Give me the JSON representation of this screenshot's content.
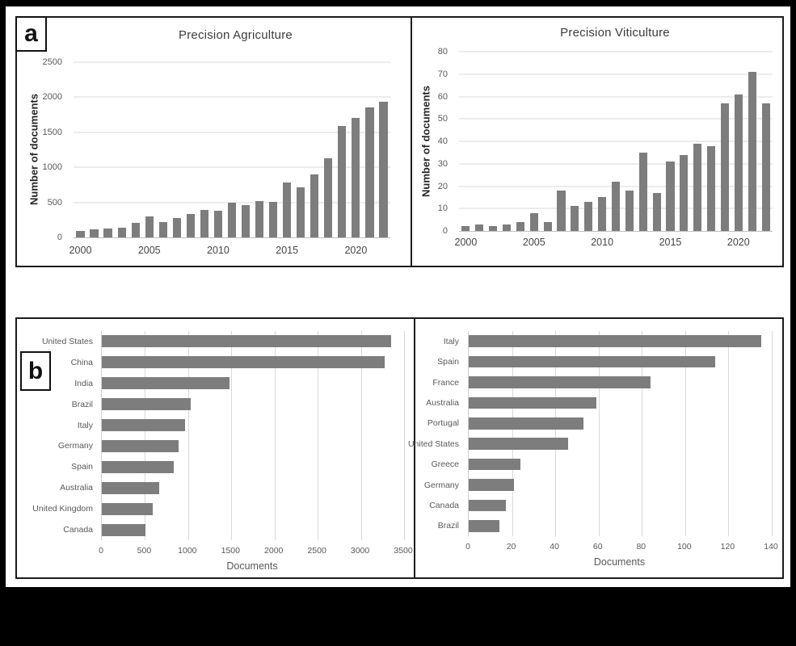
{
  "figure": {
    "panel_a_label": "a",
    "panel_b_label": "b"
  },
  "colors": {
    "canvas_bg": "#000000",
    "page_bg": "#ffffff",
    "panel_border": "#1c1c1c",
    "bar": "#7d7d7d",
    "gridline": "#d9d9d9",
    "axis_text": "#595959",
    "title_text": "#3d3d3d"
  },
  "chart_data": [
    {
      "id": "precision-agriculture-by-year",
      "type": "bar",
      "orientation": "vertical",
      "title": "Precision Agriculture",
      "ylabel": "Number of documents",
      "x": [
        2000,
        2001,
        2002,
        2003,
        2004,
        2005,
        2006,
        2007,
        2008,
        2009,
        2010,
        2011,
        2012,
        2013,
        2014,
        2015,
        2016,
        2017,
        2018,
        2019,
        2020,
        2021,
        2022
      ],
      "values": [
        95,
        110,
        125,
        135,
        205,
        305,
        220,
        275,
        340,
        390,
        380,
        490,
        460,
        520,
        505,
        780,
        710,
        900,
        1130,
        1590,
        1700,
        1850,
        1940
      ],
      "ylim": [
        0,
        2500
      ],
      "yticks": [
        0,
        500,
        1000,
        1500,
        2000,
        2500
      ],
      "xticks_shown": [
        2000,
        2005,
        2010,
        2015,
        2020
      ],
      "grid": true,
      "legend": "none"
    },
    {
      "id": "precision-viticulture-by-year",
      "type": "bar",
      "orientation": "vertical",
      "title": "Precision Viticulture",
      "ylabel": "Number of documents",
      "x": [
        2000,
        2001,
        2002,
        2003,
        2004,
        2005,
        2006,
        2007,
        2008,
        2009,
        2010,
        2011,
        2012,
        2013,
        2014,
        2015,
        2016,
        2017,
        2018,
        2019,
        2020,
        2021,
        2022
      ],
      "values": [
        2,
        3,
        2,
        3,
        4,
        8,
        4,
        18,
        11,
        13,
        15,
        22,
        18,
        35,
        17,
        31,
        34,
        39,
        38,
        57,
        61,
        71,
        57
      ],
      "ylim": [
        0,
        80
      ],
      "yticks": [
        0,
        10,
        20,
        30,
        40,
        50,
        60,
        70,
        80
      ],
      "xticks_shown": [
        2000,
        2005,
        2010,
        2015,
        2020
      ],
      "grid": true,
      "legend": "none"
    },
    {
      "id": "precision-agriculture-by-country",
      "type": "bar",
      "orientation": "horizontal",
      "xlabel": "Documents",
      "categories": [
        "United States",
        "China",
        "India",
        "Brazil",
        "Italy",
        "Germany",
        "Spain",
        "Australia",
        "United Kingdom",
        "Canada"
      ],
      "values": [
        3350,
        3280,
        1480,
        1030,
        960,
        890,
        835,
        660,
        585,
        510
      ],
      "xlim": [
        0,
        3500
      ],
      "xticks": [
        0,
        500,
        1000,
        1500,
        2000,
        2500,
        3000,
        3500
      ],
      "grid": true,
      "legend": "none"
    },
    {
      "id": "precision-viticulture-by-country",
      "type": "bar",
      "orientation": "horizontal",
      "xlabel": "Documents",
      "categories": [
        "Italy",
        "Spain",
        "France",
        "Australia",
        "Portugal",
        "United States",
        "Greece",
        "Germany",
        "Canada",
        "Brazil"
      ],
      "values": [
        135,
        114,
        84,
        59,
        53,
        46,
        24,
        21,
        17,
        14
      ],
      "xlim": [
        0,
        140
      ],
      "xticks": [
        0,
        20,
        40,
        60,
        80,
        100,
        120,
        140
      ],
      "grid": true,
      "legend": "none"
    }
  ]
}
